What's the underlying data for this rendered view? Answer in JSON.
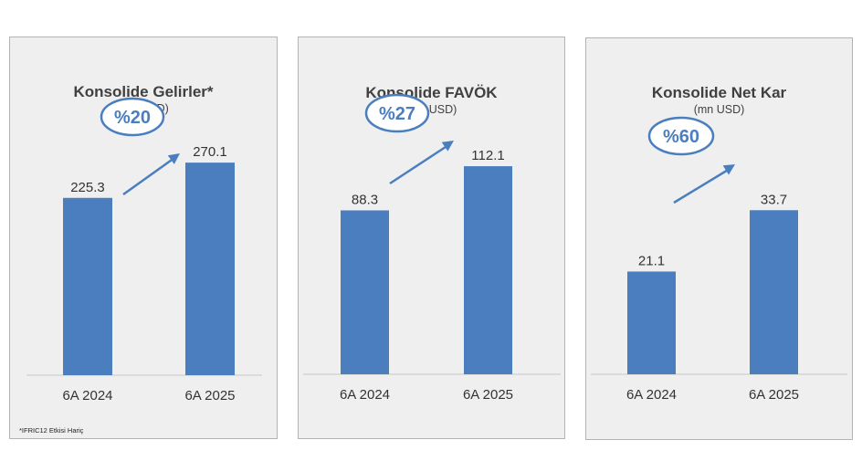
{
  "footnote": "*IFRIC12 Etkisi Hariç",
  "colors": {
    "bar": "#4a7ebf",
    "accent": "#4a7ebf",
    "text": "#404040",
    "panel_bg": "#efefef",
    "axis": "#cfcfcf"
  },
  "chart_data": [
    {
      "type": "bar",
      "title": "Konsolide Gelirler*",
      "subtitle": "(mn USD)",
      "categories": [
        "6A 2024",
        "6A 2025"
      ],
      "values": [
        225.3,
        270.1
      ],
      "value_labels": [
        "225.3",
        "270.1"
      ],
      "growth_label": "%20",
      "ylim": [
        0,
        290
      ],
      "grid": false
    },
    {
      "type": "bar",
      "title": "Konsolide FAVÖK",
      "subtitle": "(mn USD)",
      "categories": [
        "6A 2024",
        "6A 2025"
      ],
      "values": [
        88.3,
        112.1
      ],
      "value_labels": [
        "88.3",
        "112.1"
      ],
      "growth_label": "%27",
      "ylim": [
        0,
        120
      ],
      "grid": false
    },
    {
      "type": "bar",
      "title": "Konsolide Net Kar",
      "subtitle": "(mn USD)",
      "categories": [
        "6A 2024",
        "6A 2025"
      ],
      "values": [
        21.1,
        33.7
      ],
      "value_labels": [
        "21.1",
        "33.7"
      ],
      "growth_label": "%60",
      "ylim": [
        0,
        45
      ],
      "grid": false
    }
  ]
}
